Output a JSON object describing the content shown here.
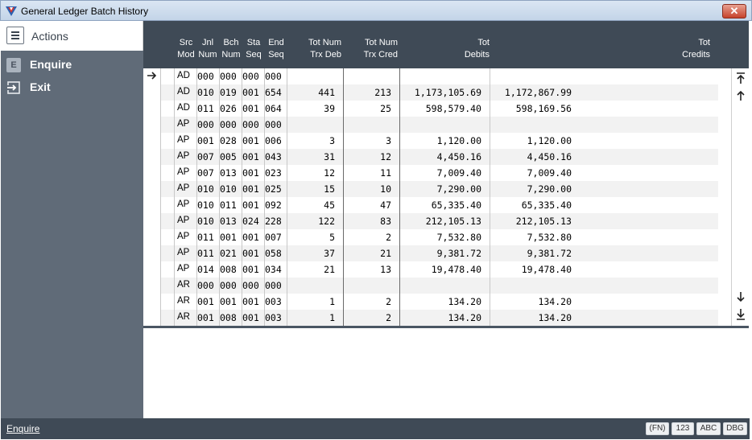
{
  "window": {
    "title": "General Ledger Batch History",
    "close_label": "✕"
  },
  "sidebar": {
    "header": "Actions",
    "items": [
      {
        "label": "Enquire",
        "icon": "enquire-icon",
        "glyph": "E"
      },
      {
        "label": "Exit",
        "icon": "exit-icon"
      }
    ]
  },
  "table": {
    "columns": [
      {
        "line1": "Src",
        "line2": "Mod"
      },
      {
        "line1": "Jnl",
        "line2": "Num"
      },
      {
        "line1": "Bch",
        "line2": "Num"
      },
      {
        "line1": "Sta",
        "line2": "Seq"
      },
      {
        "line1": "End",
        "line2": "Seq"
      },
      {
        "line1": "Tot Num",
        "line2": "Trx Deb"
      },
      {
        "line1": "Tot Num",
        "line2": "Trx Cred"
      },
      {
        "line1": "Tot",
        "line2": "Debits"
      },
      {
        "line1": "Tot",
        "line2": "Credits"
      }
    ],
    "rows": [
      [
        "AD",
        "000",
        "000",
        "000",
        "000",
        "",
        "",
        "",
        ""
      ],
      [
        "AD",
        "010",
        "019",
        "001",
        "654",
        "441",
        "213",
        "1,173,105.69",
        "1,172,867.99"
      ],
      [
        "AD",
        "011",
        "026",
        "001",
        "064",
        "39",
        "25",
        "598,579.40",
        "598,169.56"
      ],
      [
        "AP",
        "000",
        "000",
        "000",
        "000",
        "",
        "",
        "",
        ""
      ],
      [
        "AP",
        "001",
        "028",
        "001",
        "006",
        "3",
        "3",
        "1,120.00",
        "1,120.00"
      ],
      [
        "AP",
        "007",
        "005",
        "001",
        "043",
        "31",
        "12",
        "4,450.16",
        "4,450.16"
      ],
      [
        "AP",
        "007",
        "013",
        "001",
        "023",
        "12",
        "11",
        "7,009.40",
        "7,009.40"
      ],
      [
        "AP",
        "010",
        "010",
        "001",
        "025",
        "15",
        "10",
        "7,290.00",
        "7,290.00"
      ],
      [
        "AP",
        "010",
        "011",
        "001",
        "092",
        "45",
        "47",
        "65,335.40",
        "65,335.40"
      ],
      [
        "AP",
        "010",
        "013",
        "024",
        "228",
        "122",
        "83",
        "212,105.13",
        "212,105.13"
      ],
      [
        "AP",
        "011",
        "001",
        "001",
        "007",
        "5",
        "2",
        "7,532.80",
        "7,532.80"
      ],
      [
        "AP",
        "011",
        "021",
        "001",
        "058",
        "37",
        "21",
        "9,381.72",
        "9,381.72"
      ],
      [
        "AP",
        "014",
        "008",
        "001",
        "034",
        "21",
        "13",
        "19,478.40",
        "19,478.40"
      ],
      [
        "AR",
        "000",
        "000",
        "000",
        "000",
        "",
        "",
        "",
        ""
      ],
      [
        "AR",
        "001",
        "001",
        "001",
        "003",
        "1",
        "2",
        "134.20",
        "134.20"
      ],
      [
        "AR",
        "001",
        "008",
        "001",
        "003",
        "1",
        "2",
        "134.20",
        "134.20"
      ]
    ]
  },
  "statusbar": {
    "text": "Enquire",
    "badges": [
      "(FN)",
      "123",
      "ABC",
      "DBG"
    ]
  },
  "colors": {
    "header_bg": "#3f4a56",
    "sidebar_bg": "#606b78",
    "close_red": "#c6422b"
  }
}
